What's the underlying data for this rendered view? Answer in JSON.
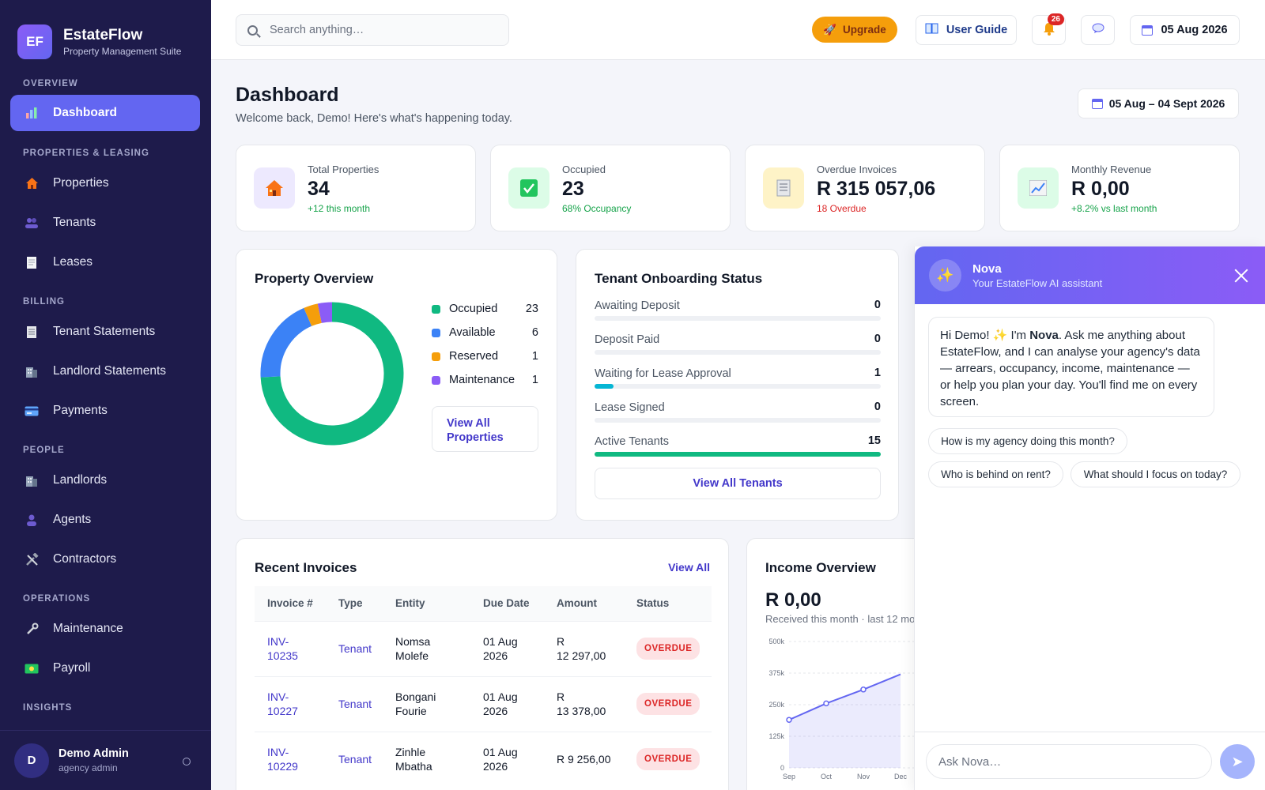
{
  "app": {
    "logo_initials": "EF",
    "name": "EstateFlow",
    "tagline": "Property Management Suite"
  },
  "sidebar": {
    "sections": [
      "OVERVIEW",
      "PROPERTIES & LEASING",
      "BILLING",
      "PEOPLE",
      "OPERATIONS",
      "INSIGHTS"
    ],
    "items": [
      {
        "label": "Dashboard",
        "icon": "bar-chart-icon"
      },
      {
        "label": "Properties",
        "icon": "house-icon"
      },
      {
        "label": "Tenants",
        "icon": "people-icon"
      },
      {
        "label": "Leases",
        "icon": "document-icon"
      },
      {
        "label": "Tenant Statements",
        "icon": "receipt-icon"
      },
      {
        "label": "Landlord Statements",
        "icon": "building-icon"
      },
      {
        "label": "Payments",
        "icon": "credit-card-icon"
      },
      {
        "label": "Landlords",
        "icon": "building-icon"
      },
      {
        "label": "Agents",
        "icon": "person-icon"
      },
      {
        "label": "Contractors",
        "icon": "tools-icon"
      },
      {
        "label": "Maintenance",
        "icon": "wrench-icon"
      },
      {
        "label": "Payroll",
        "icon": "money-icon"
      }
    ],
    "user": {
      "initial": "D",
      "name": "Demo Admin",
      "role": "agency admin"
    }
  },
  "topbar": {
    "search_placeholder": "Search anything…",
    "upgrade_label": "Upgrade",
    "user_guide_label": "User Guide",
    "notification_count": "26",
    "date_label": "05 Aug 2026"
  },
  "page": {
    "title": "Dashboard",
    "subtitle": "Welcome back, Demo! Here's what's happening today.",
    "date_range": "05 Aug – 04 Sept 2026"
  },
  "stats": [
    {
      "label": "Total Properties",
      "value": "34",
      "note": "+12 this month",
      "note_color": "#16a34a",
      "icon": "house-icon",
      "bg": "#ede9fe"
    },
    {
      "label": "Occupied",
      "value": "23",
      "note": "68% Occupancy",
      "note_color": "#16a34a",
      "icon": "check-icon",
      "bg": "#dcfce7"
    },
    {
      "label": "Overdue Invoices",
      "value": "R 315 057,06",
      "note": "18 Overdue",
      "note_color": "#dc2626",
      "icon": "invoice-icon",
      "bg": "#fef3c7"
    },
    {
      "label": "Monthly Revenue",
      "value": "R 0,00",
      "note": "+8.2% vs last month",
      "note_color": "#16a34a",
      "icon": "trend-icon",
      "bg": "#dcfce7"
    }
  ],
  "property_overview": {
    "title": "Property Overview",
    "legend": [
      {
        "label": "Occupied",
        "value": "23",
        "color": "#10b981"
      },
      {
        "label": "Available",
        "value": "6",
        "color": "#3b82f6"
      },
      {
        "label": "Reserved",
        "value": "1",
        "color": "#f59e0b"
      },
      {
        "label": "Maintenance",
        "value": "1",
        "color": "#8b5cf6"
      }
    ],
    "view_all_label": "View All Properties"
  },
  "onboarding": {
    "title": "Tenant Onboarding Status",
    "rows": [
      {
        "label": "Awaiting Deposit",
        "value": "0",
        "fill": 0,
        "color": "#6366f1"
      },
      {
        "label": "Deposit Paid",
        "value": "0",
        "fill": 0,
        "color": "#6366f1"
      },
      {
        "label": "Waiting for Lease Approval",
        "value": "1",
        "fill": 0.067,
        "color": "#06b6d4"
      },
      {
        "label": "Lease Signed",
        "value": "0",
        "fill": 0,
        "color": "#6366f1"
      },
      {
        "label": "Active Tenants",
        "value": "15",
        "fill": 1,
        "color": "#10b981"
      }
    ],
    "view_all_label": "View All Tenants"
  },
  "invoices": {
    "title": "Recent Invoices",
    "view_all_label": "View All",
    "columns": [
      "Invoice #",
      "Type",
      "Entity",
      "Due Date",
      "Amount",
      "Status"
    ],
    "rows": [
      {
        "invoice": "INV-\n10235",
        "type": "Tenant",
        "entity": "Nomsa\nMolefe",
        "due": "01 Aug\n2026",
        "amount": "R\n12 297,00",
        "status": "OVERDUE"
      },
      {
        "invoice": "INV-\n10227",
        "type": "Tenant",
        "entity": "Bongani\nFourie",
        "due": "01 Aug\n2026",
        "amount": "R\n13 378,00",
        "status": "OVERDUE"
      },
      {
        "invoice": "INV-\n10229",
        "type": "Tenant",
        "entity": "Zinhle\nMbatha",
        "due": "01 Aug\n2026",
        "amount": "R 9 256,00",
        "status": "OVERDUE"
      }
    ]
  },
  "income": {
    "title": "Income Overview",
    "value": "R 0,00",
    "subtitle": "Received this month · last 12 mo"
  },
  "chart_data": {
    "type": "area",
    "x": [
      "Sep",
      "Oct",
      "Nov",
      "Dec"
    ],
    "y": [
      190000,
      255000,
      310000,
      370000
    ],
    "ytick_labels": [
      "0",
      "125k",
      "250k",
      "375k",
      "500k"
    ],
    "ylim": [
      0,
      500000
    ],
    "grid": true,
    "color": "#6366f1"
  },
  "nova": {
    "name": "Nova",
    "subtitle": "Your EstateFlow AI assistant",
    "message_pre": "Hi Demo! ✨ I'm ",
    "message_name": "Nova",
    "message_post": ". Ask me anything about EstateFlow, and I can analyse your agency's data — arrears, occupancy, income, maintenance — or help you plan your day. You'll find me on every screen.",
    "chips": [
      "How is my agency doing this month?",
      "Who is behind on rent?",
      "What should I focus on today?"
    ],
    "input_placeholder": "Ask Nova…"
  }
}
